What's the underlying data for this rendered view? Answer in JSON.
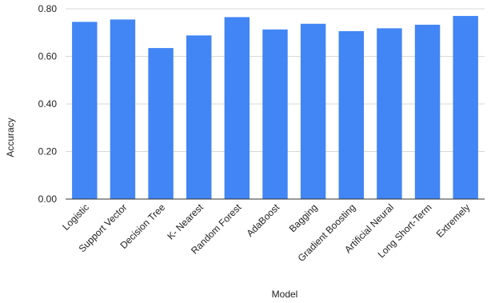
{
  "chart_data": {
    "type": "bar",
    "title": "",
    "xlabel": "Model",
    "ylabel": "Accuracy",
    "categories": [
      "Logistic",
      "Support Vector",
      "Decision Tree",
      "K- Nearest",
      "Random Forest",
      "AdaBoost",
      "Bagging",
      "Gradient Boosting",
      "Artificial Neural",
      "Long Short-Term",
      "Extremely"
    ],
    "values": [
      0.745,
      0.755,
      0.635,
      0.688,
      0.765,
      0.713,
      0.737,
      0.706,
      0.718,
      0.733,
      0.77
    ],
    "ylim": [
      0,
      0.8
    ],
    "yticks": [
      0,
      0.2,
      0.4,
      0.6,
      0.8
    ],
    "ytick_labels": [
      "0.00",
      "0.20",
      "0.40",
      "0.60",
      "0.80"
    ],
    "grid": true,
    "legend": "none",
    "colors": {
      "bar": "#4285F4",
      "grid": "#d9d9d9",
      "baseline": "#333333",
      "text": "#222222"
    }
  }
}
